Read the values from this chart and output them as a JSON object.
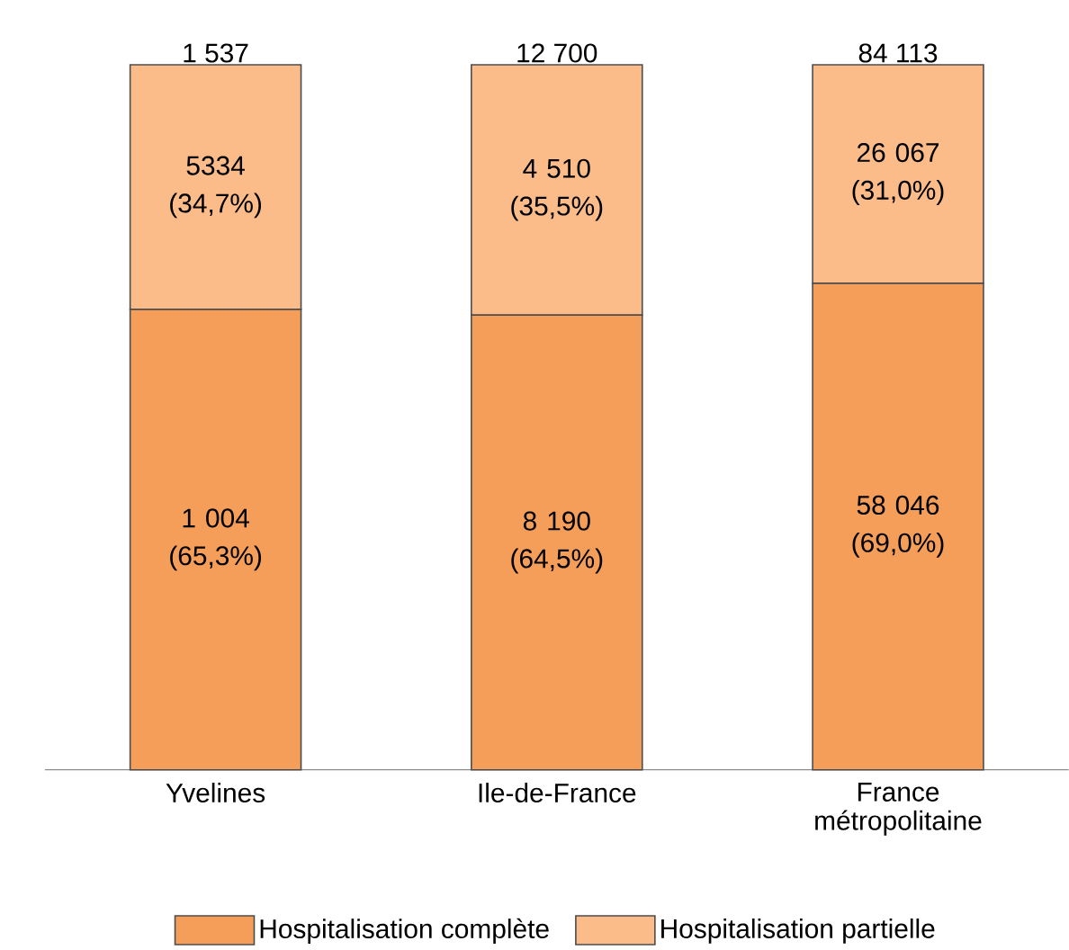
{
  "chart_data": {
    "type": "bar",
    "stacked": true,
    "categories": [
      "Yvelines",
      "Ile-de-France",
      "France métropolitaine"
    ],
    "ylim": [
      0,
      100
    ],
    "tick_labels": "x",
    "legend": "bottom",
    "series": [
      {
        "name": "Hospitalisation complète",
        "color": "#f59e5a",
        "values": [
          65.3,
          64.5,
          69.0
        ],
        "value_labels": [
          "1 004 (65,3%)",
          "8 190 (64,5%)",
          "58 046 (69,0%)"
        ]
      },
      {
        "name": "Hospitalisation partielle",
        "color": "#fbbc8a",
        "values": [
          34.7,
          35.5,
          31.0
        ],
        "value_labels": [
          "5334 (34,7%)",
          "4 510 (35,5%)",
          "26 067 (31,0%)"
        ]
      }
    ],
    "annotations": [
      {
        "text": "1 537",
        "x": "Yvelines",
        "y": 100
      },
      {
        "text": "12 700",
        "x": "Ile-de-France",
        "y": 100
      },
      {
        "text": "84 113",
        "x": "France métropolitaine",
        "y": 100
      }
    ]
  }
}
